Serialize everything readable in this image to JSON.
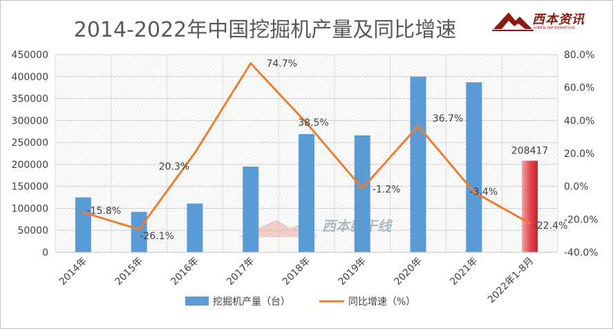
{
  "chart_data": {
    "type": "bar",
    "title": "2014-2022年中国挖掘机产量及同比增速",
    "categories": [
      "2014年",
      "2015年",
      "2016年",
      "2017年",
      "2018年",
      "2019年",
      "2020年",
      "2021年",
      "2022年1-8月"
    ],
    "series": [
      {
        "name": "挖掘机产量（台）",
        "type": "bar",
        "axis": "left",
        "color": "#5b9bd5",
        "last_bar_color": "#e0454a",
        "values": [
          125000,
          92000,
          111000,
          195000,
          269000,
          266000,
          400000,
          387000,
          208417
        ]
      },
      {
        "name": "同比增速（%）",
        "type": "line",
        "axis": "right",
        "color": "#ed7d31",
        "values": [
          -15.8,
          -26.1,
          20.3,
          74.7,
          38.5,
          -1.2,
          36.7,
          -3.4,
          -22.4
        ]
      }
    ],
    "data_labels": {
      "bars": [
        "",
        "",
        "",
        "",
        "",
        "",
        "",
        "",
        "208417"
      ],
      "line": [
        "-15.8%",
        "-26.1%",
        "20.3%",
        "74.7%",
        "38.5%",
        "-1.2%",
        "36.7%",
        "-3.4%",
        "-22.4%"
      ]
    },
    "y_left": {
      "ylim": [
        0,
        450000
      ],
      "ticks": [
        "0",
        "50000",
        "100000",
        "150000",
        "200000",
        "250000",
        "300000",
        "350000",
        "400000",
        "450000"
      ]
    },
    "y_right": {
      "ylim": [
        -40,
        80
      ],
      "ticks": [
        "-40.0%",
        "-20.0%",
        "0.0%",
        "20.0%",
        "40.0%",
        "60.0%",
        "80.0%"
      ]
    },
    "grid": true,
    "legend_position": "bottom"
  },
  "branding": {
    "logo_text": "西本资讯",
    "logo_subtext": "XIBEN INFORMATION",
    "watermark_text": "西本新干线"
  },
  "colors": {
    "bar": "#5b9bd5",
    "bar_highlight": "#e0454a",
    "line": "#ed7d31",
    "title": "#595959",
    "axis_text": "#404040",
    "logo": "#8b1a10"
  }
}
